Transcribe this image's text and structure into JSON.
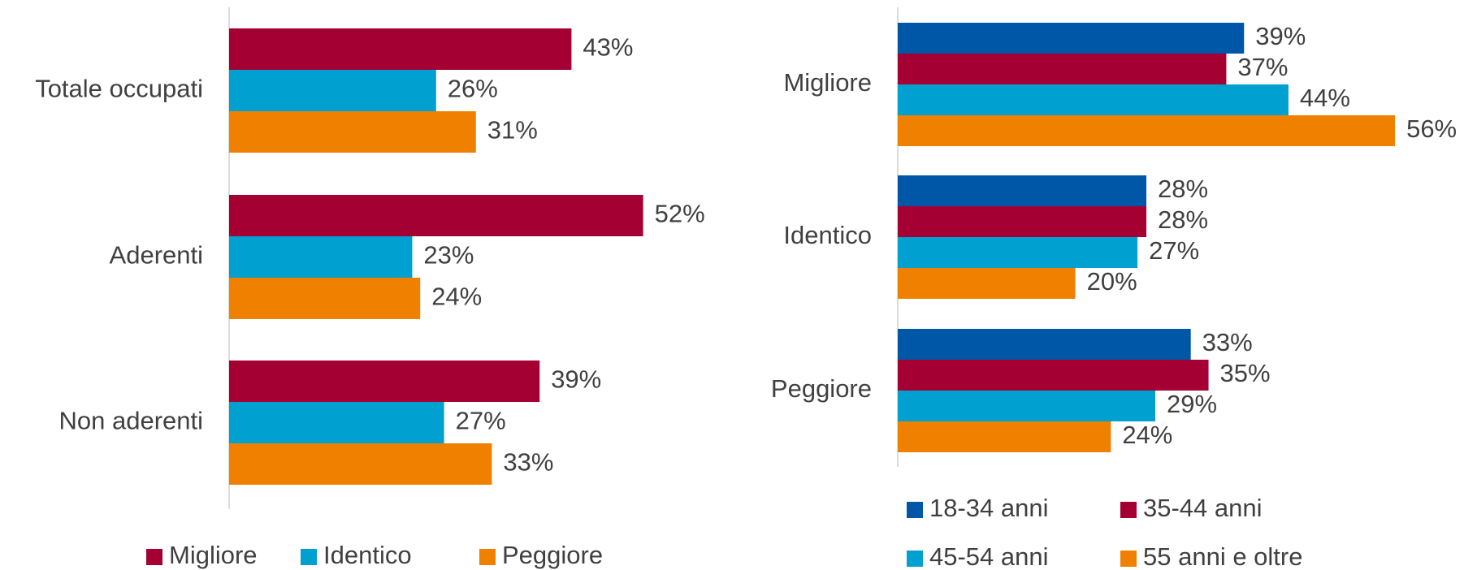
{
  "chart_data": [
    {
      "type": "bar",
      "orientation": "horizontal",
      "categories": [
        "Totale occupati",
        "Aderenti",
        "Non aderenti"
      ],
      "series": [
        {
          "name": "Migliore",
          "color": "#a50034",
          "values": [
            43,
            52,
            39
          ],
          "value_labels": [
            "43%",
            "52%",
            "39%"
          ]
        },
        {
          "name": "Identico",
          "color": "#00a0d0",
          "values": [
            26,
            23,
            27
          ],
          "value_labels": [
            "26%",
            "23%",
            "27%"
          ]
        },
        {
          "name": "Peggiore",
          "color": "#f08000",
          "values": [
            31,
            24,
            33
          ],
          "value_labels": [
            "31%",
            "24%",
            "33%"
          ]
        }
      ],
      "legend": "bottom"
    },
    {
      "type": "bar",
      "orientation": "horizontal",
      "categories": [
        "Migliore",
        "Identico",
        "Peggiore"
      ],
      "series": [
        {
          "name": "18-34 anni",
          "color": "#0057a8",
          "values": [
            39,
            28,
            33
          ],
          "value_labels": [
            "39%",
            "28%",
            "33%"
          ]
        },
        {
          "name": "35-44 anni",
          "color": "#a50034",
          "values": [
            37,
            28,
            35
          ],
          "value_labels": [
            "37%",
            "28%",
            "35%"
          ]
        },
        {
          "name": "45-54 anni",
          "color": "#00a0d0",
          "values": [
            44,
            27,
            29
          ],
          "value_labels": [
            "44%",
            "27%",
            "29%"
          ]
        },
        {
          "name": "55 anni e oltre",
          "color": "#f08000",
          "values": [
            56,
            20,
            24
          ],
          "value_labels": [
            "56%",
            "20%",
            "24%"
          ]
        }
      ],
      "legend": "bottom"
    }
  ]
}
